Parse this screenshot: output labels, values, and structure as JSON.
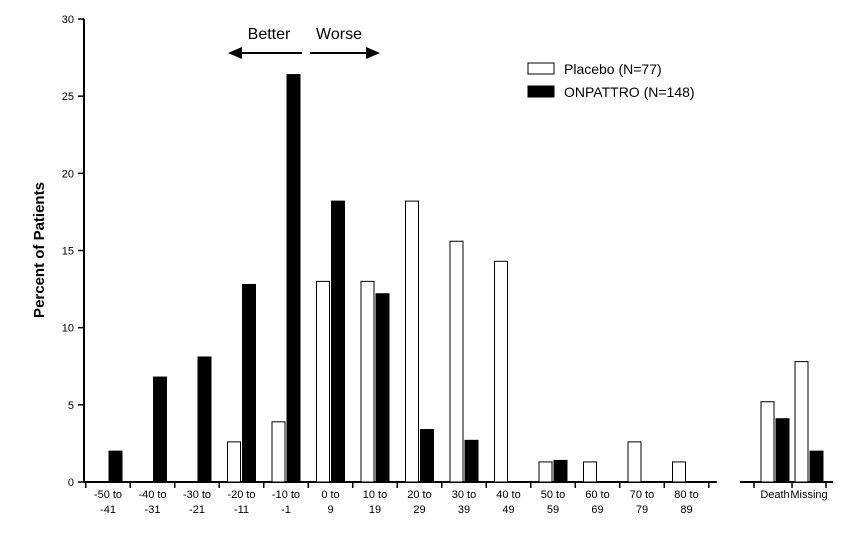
{
  "chart_data": {
    "type": "bar",
    "title": "",
    "xlabel": "",
    "ylabel": "Percent of Patients",
    "ylim": [
      0,
      30
    ],
    "yticks": [
      0,
      5,
      10,
      15,
      20,
      25,
      30
    ],
    "categories": [
      [
        "-50 to",
        "-41"
      ],
      [
        "-40 to",
        "-31"
      ],
      [
        "-30 to",
        "-21"
      ],
      [
        "-20 to",
        "-11"
      ],
      [
        "-10 to",
        "-1"
      ],
      [
        "0 to",
        "9"
      ],
      [
        "10 to",
        "19"
      ],
      [
        "20 to",
        "29"
      ],
      [
        "30 to",
        "39"
      ],
      [
        "40 to",
        "49"
      ],
      [
        "50 to",
        "59"
      ],
      [
        "60 to",
        "69"
      ],
      [
        "70 to",
        "79"
      ],
      [
        "80 to",
        "89"
      ]
    ],
    "extra_categories": [
      "Death",
      "Missing"
    ],
    "series": [
      {
        "name": "Placebo (N=77)",
        "color": "#ffffff",
        "values": [
          0,
          0,
          0,
          2.6,
          3.9,
          13.0,
          13.0,
          18.2,
          15.6,
          14.3,
          1.3,
          1.3,
          2.6,
          1.3
        ],
        "extra_values": [
          5.2,
          7.8
        ]
      },
      {
        "name": "ONPATTRO (N=148)",
        "color": "#000000",
        "values": [
          2.0,
          6.8,
          8.1,
          12.8,
          26.4,
          18.2,
          12.2,
          3.4,
          2.7,
          0,
          1.4,
          0,
          0,
          0
        ],
        "extra_values": [
          4.1,
          2.0
        ]
      }
    ],
    "legend_position": "top-right",
    "annotations": {
      "better": "Better",
      "worse": "Worse"
    }
  }
}
